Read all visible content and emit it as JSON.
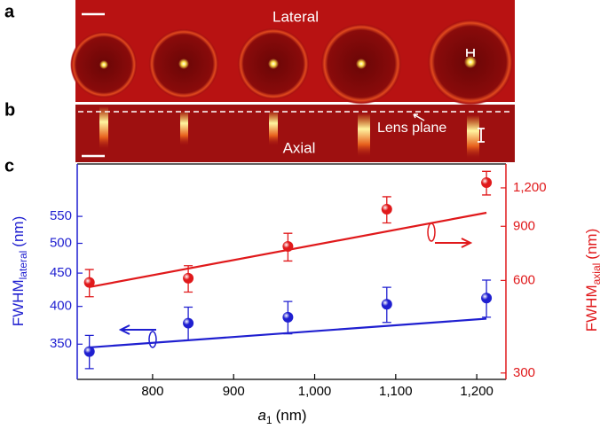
{
  "figure": {
    "panel_labels": [
      "a",
      "b",
      "c"
    ],
    "lateral": "Lateral",
    "axial": "Axial",
    "lens_plane": "Lens plane"
  },
  "chart_data": {
    "type": "scatter",
    "x_label": {
      "main": "a",
      "sub": "1",
      "unit": "(nm)"
    },
    "y_label": {
      "main": "FWHM",
      "sub": "lateral",
      "unit": "(nm)"
    },
    "y2_label": {
      "main": "FWHM",
      "sub": "axial",
      "unit": "(nm)"
    },
    "xlim": [
      707,
      1236
    ],
    "xticks": [
      800,
      900,
      {
        "value": 1000,
        "label": "1,000"
      },
      {
        "value": 1100,
        "label": "1,100"
      },
      {
        "value": 1200,
        "label": "1,200"
      }
    ],
    "ylim": [
      309,
      662
    ],
    "yticks": [
      350,
      400,
      450,
      500,
      550
    ],
    "y_color": "#1f1fd0",
    "y2lim": [
      286,
      1435
    ],
    "y2ticks": [
      300,
      600,
      900,
      {
        "value": 1200,
        "label": "1,200"
      }
    ],
    "y2_color": "#e0191b",
    "log_y": true,
    "series": [
      {
        "color": "#1f1fd0",
        "x": [
          722,
          844,
          967,
          1089,
          1212
        ],
        "values": [
          341,
          377,
          385,
          403,
          412
        ],
        "errors": [
          20,
          22,
          22,
          25,
          27
        ]
      },
      {
        "color": "#e0191b",
        "axis": "y2",
        "x": [
          722,
          844,
          967,
          1089,
          1212
        ],
        "values": [
          591,
          610,
          774,
          1023,
          1248
        ],
        "errors": [
          60,
          60,
          80,
          100,
          110
        ]
      }
    ],
    "fits": [
      {
        "color": "#1f1fd0",
        "x": [
          722,
          1212
        ],
        "values": [
          346,
          383
        ]
      },
      {
        "color": "#e0191b",
        "axis": "y2",
        "x": [
          722,
          1212
        ],
        "values": [
          571,
          996
        ]
      }
    ]
  }
}
